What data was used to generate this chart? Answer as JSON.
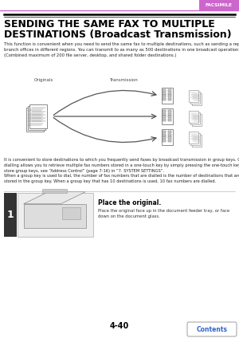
{
  "bg_color": "#ffffff",
  "header_tab_color": "#cc66cc",
  "header_tab_text": "FACSIMILE",
  "header_line_color": "#cc66cc",
  "title_line_color": "#000000",
  "title_line1": "SENDING THE SAME FAX TO MULTIPLE",
  "title_line2": "DESTINATIONS (Broadcast Transmission)",
  "body_text": "This function is convenient when you need to send the same fax to multiple destinations, such as sending a report to\nbranch offices in different regions. You can transmit to as many as 500 destinations in one broadcast operation.\n(Combined maximum of 200 file server, desktop, and shared folder destinations.)",
  "diagram_label_originals": "Originals",
  "diagram_label_transmission": "Transmission",
  "para2_text": "It is convenient to store destinations to which you frequently send faxes by broadcast transmission in group keys. Group\ndialling allows you to retrieve multiple fax numbers stored in a one-touch key by simply pressing the one-touch key. To\nstore group keys, see “Address Control” (page 7-16) in “7. SYSTEM SETTINGS”.\nWhen a group key is used to dial, the number of fax numbers that are dialled is the number of destinations that are\nstored in the group key. When a group key that has 10 destinations is used, 10 fax numbers are dialled.",
  "step_number": "1",
  "step_title": "Place the original.",
  "step_text": "Place the original face up in the document feeder tray, or face\ndown on the document glass.",
  "page_number": "4-40",
  "contents_button_text": "Contents",
  "contents_button_color": "#3366cc",
  "step_separator_color": "#aaaaaa"
}
